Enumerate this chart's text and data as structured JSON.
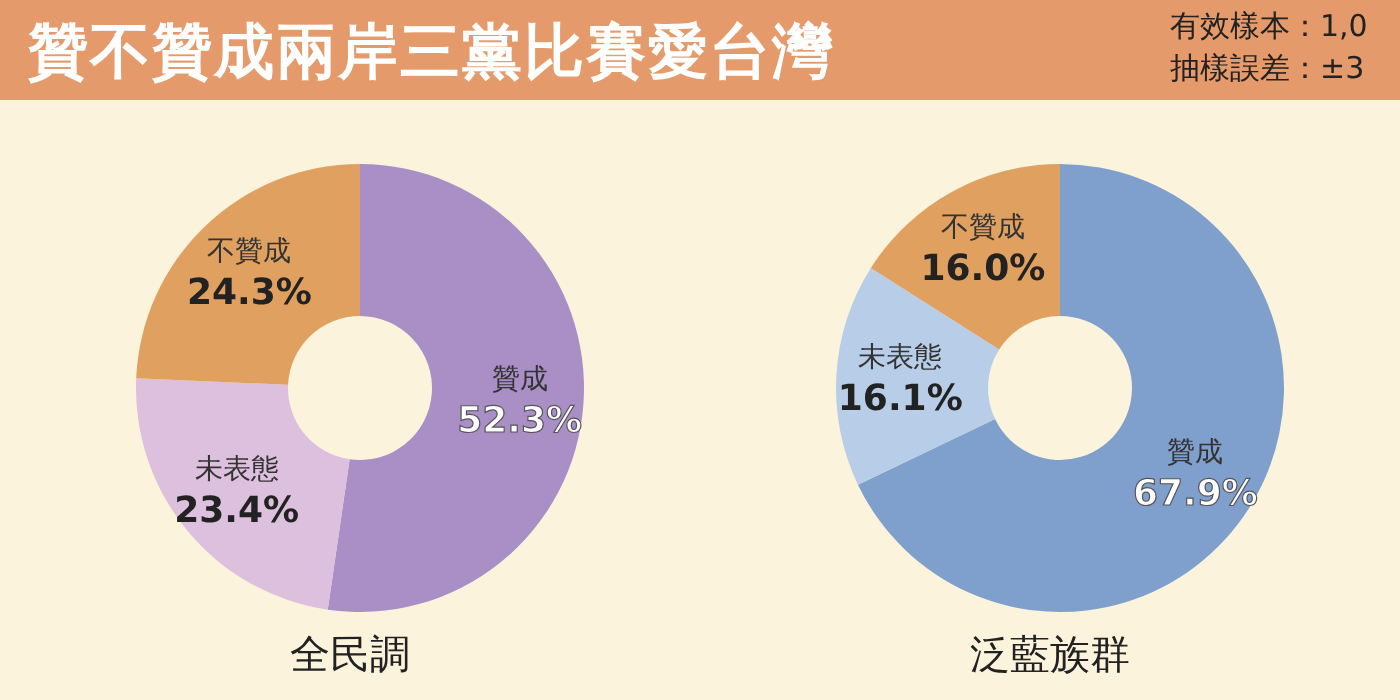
{
  "chart_data": [
    {
      "type": "donut",
      "title": "贊不贊成兩岸三黨比賽愛台灣",
      "annotations": [
        "有效樣本：1,0",
        "抽樣誤差：±3"
      ],
      "xlabel": "全民調",
      "categories": [
        "贊成",
        "未表態",
        "不贊成"
      ],
      "values": [
        52.3,
        23.4,
        24.3
      ],
      "colors": [
        "#a98fc6",
        "#dcc0de",
        "#e0a060"
      ],
      "value_labels": [
        "52.3%",
        "23.4%",
        "24.3%"
      ],
      "legend": false
    },
    {
      "type": "donut",
      "xlabel": "泛藍族群",
      "categories": [
        "贊成",
        "未表態",
        "不贊成"
      ],
      "values": [
        67.9,
        16.1,
        16.0
      ],
      "colors": [
        "#7fa0cc",
        "#b8cde8",
        "#e0a060"
      ],
      "value_labels": [
        "67.9%",
        "16.1%",
        "16.0%"
      ],
      "legend": false
    }
  ]
}
